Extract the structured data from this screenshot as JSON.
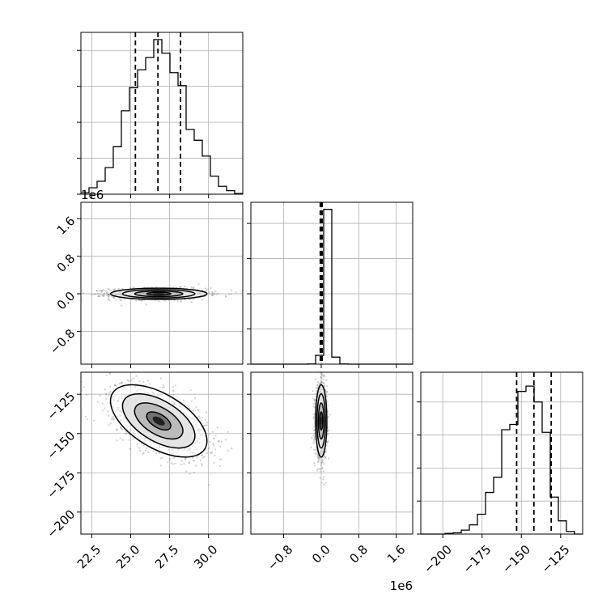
{
  "chart_data": {
    "type": "corner",
    "colors": {
      "ink": "#000000",
      "grid": "#b0b0b0",
      "scatter": "#7f7f7f"
    },
    "offset_labels": {
      "x_param1": "1e6",
      "y_param1": "1e6"
    },
    "parameters": [
      {
        "label": "",
        "ticks": [
          22.5,
          25.0,
          27.5,
          30.0
        ],
        "tick_labels": [
          "22.5",
          "25.0",
          "27.5",
          "30.0"
        ],
        "range": [
          21.8,
          32.2
        ]
      },
      {
        "label": "",
        "ticks": [
          -0.8,
          0.0,
          0.8,
          1.6
        ],
        "tick_labels": [
          "−0.8",
          "0.0",
          "0.8",
          "1.6"
        ],
        "range": [
          -1.5,
          1.95
        ]
      },
      {
        "label": "",
        "ticks": [
          -200,
          -175,
          -150,
          -125
        ],
        "tick_labels": [
          "−200",
          "−175",
          "−150",
          "−125"
        ],
        "range": [
          -214,
          -111
        ]
      }
    ],
    "histograms": [
      {
        "bin_edges": [
          21.8,
          22.32,
          22.84,
          23.36,
          23.88,
          24.4,
          24.92,
          25.44,
          25.96,
          26.48,
          27.0,
          27.52,
          28.04,
          28.56,
          29.08,
          29.6,
          30.12,
          30.64,
          31.16,
          31.68,
          32.2
        ],
        "counts": [
          2,
          9,
          18,
          37,
          66,
          116,
          148,
          173,
          190,
          215,
          196,
          169,
          151,
          90,
          75,
          53,
          25,
          11,
          5,
          1
        ],
        "ymax": 225,
        "quantiles": [
          25.3,
          26.75,
          28.2
        ],
        "yticks": [
          0,
          50,
          100,
          150,
          200
        ]
      },
      {
        "bin_edges": [
          -1.5,
          -1.3275,
          -1.155,
          -0.9825,
          -0.81,
          -0.6375,
          -0.465,
          -0.2925,
          -0.12,
          0.0525,
          0.225,
          0.3975,
          0.57,
          0.7425,
          0.915,
          1.0875,
          1.26,
          1.4325,
          1.605,
          1.7775,
          1.95
        ],
        "counts": [
          0,
          0,
          0,
          0,
          0,
          0,
          0,
          0.1,
          5,
          88,
          4,
          0.1,
          0,
          0,
          0,
          0,
          0,
          0,
          0,
          0
        ],
        "ymax": 92,
        "quantiles": [
          -0.02,
          0.0,
          0.02
        ],
        "yticks": [
          0,
          20,
          40,
          60,
          80
        ]
      },
      {
        "bin_edges": [
          -214,
          -208.85,
          -203.7,
          -198.55,
          -193.4,
          -188.25,
          -183.1,
          -177.95,
          -172.8,
          -167.65,
          -162.5,
          -157.35,
          -152.2,
          -147.05,
          -141.9,
          -136.75,
          -131.6,
          -126.45,
          -121.3,
          -116.15,
          -111
        ],
        "counts": [
          0,
          0,
          0,
          1,
          2,
          6,
          14,
          30,
          63,
          86,
          158,
          166,
          216,
          224,
          200,
          154,
          56,
          20,
          4,
          0
        ],
        "ymax": 245,
        "quantiles": [
          -153,
          -142,
          -131
        ],
        "yticks": [
          0,
          50,
          100,
          150,
          200
        ]
      }
    ],
    "pairs": [
      {
        "x": 0,
        "y": 1,
        "mean": [
          26.8,
          0.0
        ],
        "sd": [
          1.55,
          0.06
        ],
        "rho": 0.0
      },
      {
        "x": 0,
        "y": 2,
        "mean": [
          26.8,
          -142.0
        ],
        "sd": [
          1.55,
          11.5
        ],
        "rho": -0.55
      },
      {
        "x": 1,
        "y": 2,
        "mean": [
          0.0,
          -142.0
        ],
        "sd": [
          0.06,
          11.5
        ],
        "rho": 0.0
      }
    ],
    "contour_levels_sigma": [
      0.5,
      1.0,
      1.5,
      2.0
    ],
    "grid": true
  }
}
